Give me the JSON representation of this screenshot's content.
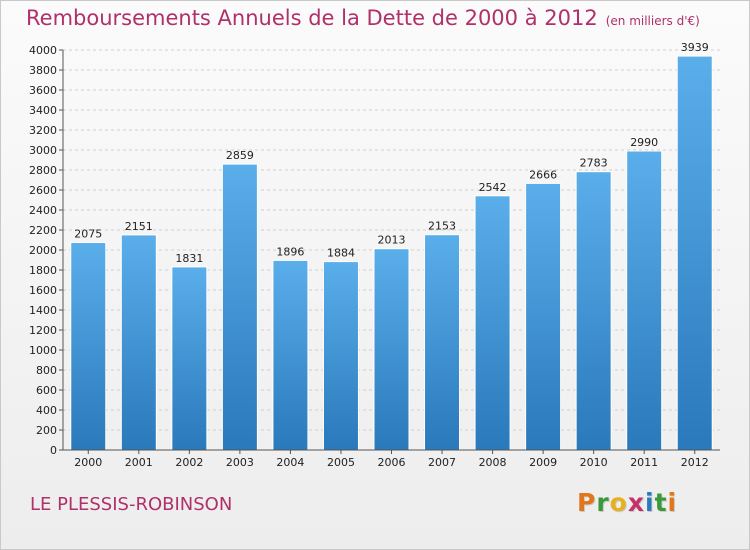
{
  "header": {
    "title": "Remboursements Annuels de la Dette de 2000 à 2012",
    "subtitle": "(en milliers d'€)"
  },
  "footer": {
    "commune": "LE PLESSIS-ROBINSON",
    "logo_text": "Proxiti"
  },
  "colors": {
    "title": "#b0306a",
    "bar_top": "#5aaeea",
    "bar_bottom": "#2a79bb"
  },
  "chart_data": {
    "type": "bar",
    "title": "Remboursements Annuels de la Dette de 2000 à 2012",
    "subtitle": "(en milliers d'€)",
    "categories": [
      "2000",
      "2001",
      "2002",
      "2003",
      "2004",
      "2005",
      "2006",
      "2007",
      "2008",
      "2009",
      "2010",
      "2011",
      "2012"
    ],
    "values": [
      2075,
      2151,
      1831,
      2859,
      1896,
      1884,
      2013,
      2153,
      2542,
      2666,
      2783,
      2990,
      3939
    ],
    "ylim": [
      0,
      4000
    ],
    "ytick_step": 200,
    "grid": "horizontal dashed",
    "data_labels": true
  }
}
